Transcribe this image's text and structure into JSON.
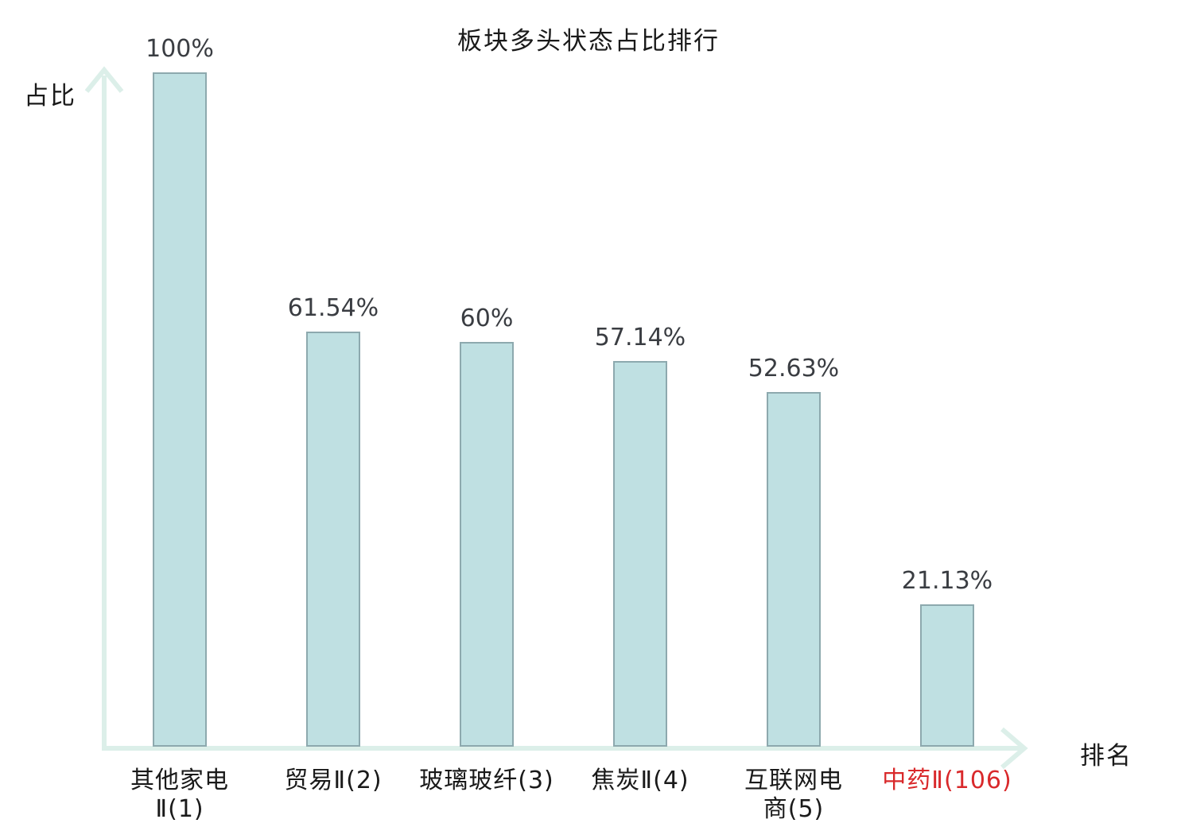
{
  "chart_data": {
    "type": "bar",
    "title": "板块多头状态占比排行",
    "xlabel": "排名",
    "ylabel": "占比",
    "categories": [
      "其他家电Ⅱ(1)",
      "贸易Ⅱ(2)",
      "玻璃玻纤(3)",
      "焦炭Ⅱ(4)",
      "互联网电商(5)",
      "中药Ⅱ(106)"
    ],
    "category_display": [
      "其他家电\nⅡ(1)",
      "贸易Ⅱ(2)",
      "玻璃玻纤(3)",
      "焦炭Ⅱ(4)",
      "互联网电\n商(5)",
      "中药Ⅱ(106)"
    ],
    "values": [
      100,
      61.54,
      60,
      57.14,
      52.63,
      21.13
    ],
    "value_labels": [
      "100%",
      "61.54%",
      "60%",
      "57.14%",
      "52.63%",
      "21.13%"
    ],
    "ylim": [
      0,
      100
    ],
    "grid": false,
    "legend_position": "none",
    "highlight_index": 5,
    "colors": {
      "bar_fill": "#bfe0e2",
      "bar_border": "#8da9ae",
      "axis": "#dcefe9",
      "value_label": "#3a3d42",
      "category_label": "#1a1a1a",
      "highlight": "#d9292b"
    }
  }
}
